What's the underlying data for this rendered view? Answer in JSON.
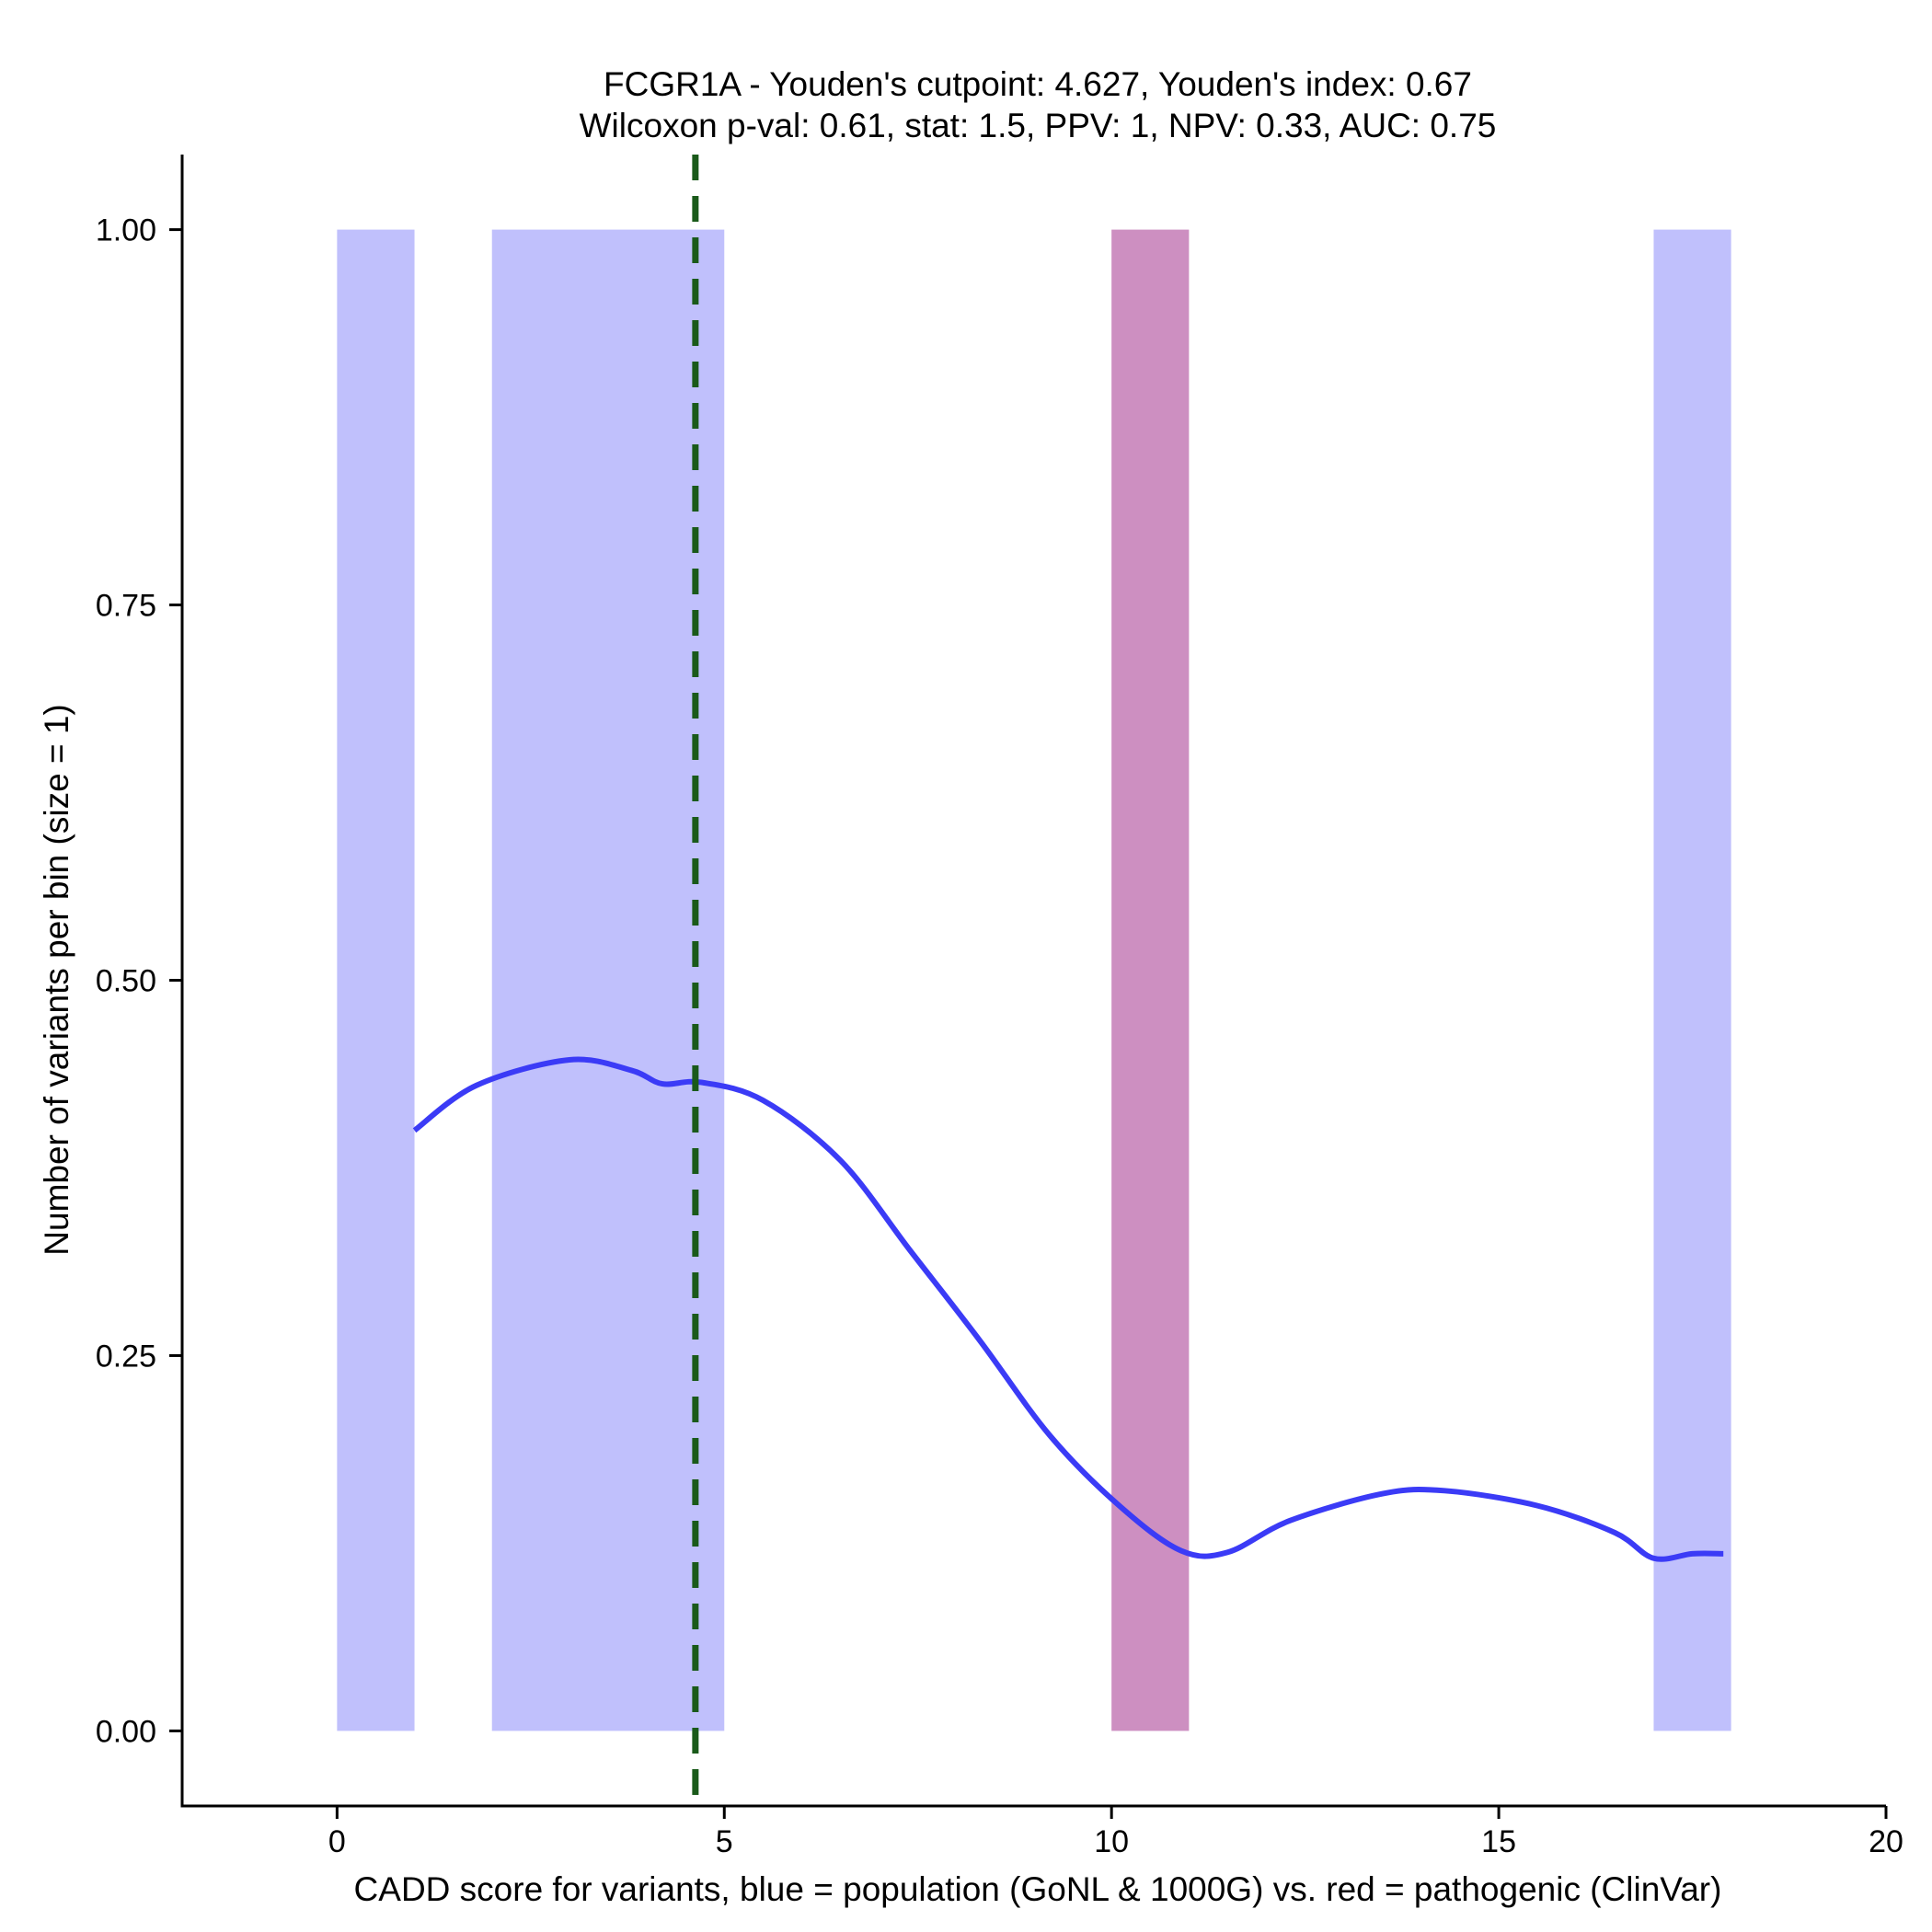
{
  "chart_data": {
    "type": "bar",
    "title": [
      "FCGR1A - Youden's cutpoint: 4.627, Youden's index: 0.67",
      "Wilcoxon p-val: 0.61, stat: 1.5, PPV: 1, NPV: 0.33, AUC: 0.75"
    ],
    "xlabel": "CADD score for variants, blue = population (GoNL & 1000G) vs. red = pathogenic (ClinVar)",
    "ylabel": "Number of variants per bin (size = 1)",
    "xlim": [
      -2,
      20
    ],
    "ylim": [
      -0.05,
      1.05
    ],
    "xticks": [
      0,
      5,
      10,
      15,
      20
    ],
    "xtick_labels": [
      "0",
      "5",
      "10",
      "15",
      "20"
    ],
    "yticks": [
      0,
      0.25,
      0.5,
      0.75,
      1
    ],
    "ytick_labels": [
      "0.00",
      "0.25",
      "0.50",
      "0.75",
      "1.00"
    ],
    "bars": [
      {
        "series": "population",
        "x0": 0,
        "x1": 1,
        "value": 1
      },
      {
        "series": "population",
        "x0": 2,
        "x1": 5,
        "value": 1
      },
      {
        "series": "pathogenic",
        "x0": 10,
        "x1": 11,
        "value": 1
      },
      {
        "series": "population",
        "x0": 17,
        "x1": 18,
        "value": 1
      }
    ],
    "series": [
      {
        "name": "population",
        "color": "#C0C0FC"
      },
      {
        "name": "pathogenic",
        "color": "#CD8FC1"
      }
    ],
    "smooth_line": {
      "color": "#3B3BF6",
      "points": [
        [
          1.0,
          0.4
        ],
        [
          1.8,
          0.43
        ],
        [
          3.0,
          0.447
        ],
        [
          3.8,
          0.44
        ],
        [
          4.2,
          0.431
        ],
        [
          4.7,
          0.432
        ],
        [
          5.5,
          0.42
        ],
        [
          6.5,
          0.38
        ],
        [
          7.4,
          0.32
        ],
        [
          8.3,
          0.26
        ],
        [
          9.2,
          0.197
        ],
        [
          10.1,
          0.15
        ],
        [
          10.9,
          0.12
        ],
        [
          11.5,
          0.119
        ],
        [
          12.3,
          0.14
        ],
        [
          13.5,
          0.158
        ],
        [
          14.3,
          0.16
        ],
        [
          15.5,
          0.15
        ],
        [
          16.5,
          0.132
        ],
        [
          17.0,
          0.115
        ],
        [
          17.5,
          0.118
        ],
        [
          17.9,
          0.118
        ]
      ]
    },
    "cutpoint": {
      "x": 4.627,
      "color": "#1A5A1A"
    }
  }
}
